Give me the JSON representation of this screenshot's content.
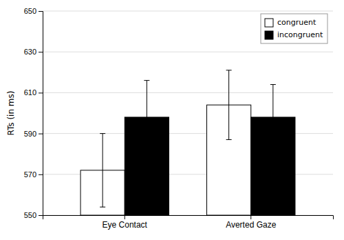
{
  "chart_data": {
    "type": "bar",
    "categories": [
      "Eye Contact",
      "Averted Gaze"
    ],
    "series": [
      {
        "name": "congruent",
        "color": "#ffffff",
        "values": [
          572,
          604
        ],
        "errors": [
          [
            18,
            18
          ],
          [
            17,
            17
          ]
        ]
      },
      {
        "name": "incongruent",
        "color": "#000000",
        "values": [
          598,
          598
        ],
        "errors": [
          [
            16,
            18
          ],
          [
            16,
            16
          ]
        ]
      }
    ],
    "ylabel": "RTs (in ms)",
    "ylim": [
      550,
      650
    ],
    "yticks": [
      550,
      570,
      590,
      610,
      630,
      650
    ],
    "grid": true,
    "legend": "upper right"
  }
}
